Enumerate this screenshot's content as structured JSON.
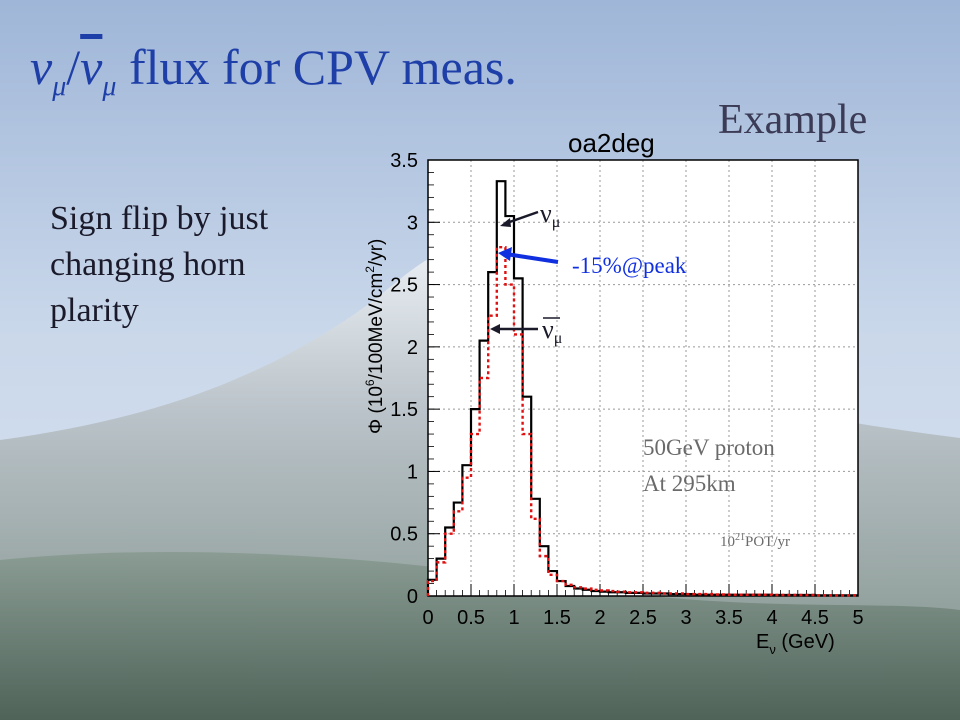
{
  "slide": {
    "title_nu": "ν",
    "title_sub": "μ",
    "title_slash": "/",
    "title_nubar": "ν",
    "title_rest": " flux for CPV meas.",
    "example_label": "Example",
    "side_text": "Sign flip by just changing horn plarity"
  },
  "colors": {
    "title": "#1f3fa8",
    "numu_line": "#000000",
    "numubar_line": "#e01010",
    "blue_arrow": "#1030e0",
    "annotation_blue": "#1030e0",
    "annotation_gray": "#6a6a6a"
  },
  "chart_data": {
    "type": "line",
    "step": true,
    "title": "oa2deg",
    "xlabel_main": "E",
    "xlabel_sub": "ν",
    "xlabel_unit": " (GeV)",
    "ylabel_pre": "Φ (10",
    "ylabel_exp1": "6",
    "ylabel_mid": "/100MeV/cm",
    "ylabel_exp2": "2",
    "ylabel_post": "/yr)",
    "xlim": [
      0,
      5
    ],
    "ylim": [
      0,
      3.5
    ],
    "xticks": [
      "0",
      "0.5",
      "1",
      "1.5",
      "2",
      "2.5",
      "3",
      "3.5",
      "4",
      "4.5",
      "5"
    ],
    "yticks": [
      "0",
      "0.5",
      "1",
      "1.5",
      "2",
      "2.5",
      "3",
      "3.5"
    ],
    "grid": true,
    "bin_width": 0.1,
    "series": [
      {
        "label_text": "νμ",
        "style": "solid",
        "color": "#000000",
        "values": [
          0.13,
          0.3,
          0.55,
          0.75,
          1.05,
          1.5,
          2.05,
          2.6,
          3.33,
          3.05,
          2.55,
          1.6,
          0.78,
          0.4,
          0.2,
          0.12,
          0.08,
          0.06,
          0.05,
          0.04,
          0.035,
          0.03,
          0.03,
          0.025,
          0.025,
          0.02,
          0.02,
          0.02,
          0.015,
          0.015,
          0.015,
          0.01,
          0.01,
          0.01,
          0.01,
          0.01,
          0.01,
          0.01,
          0.01,
          0.01,
          0.008,
          0.008,
          0.008,
          0.008,
          0.008,
          0.005,
          0.005,
          0.005,
          0.005,
          0.005
        ]
      },
      {
        "label_text": "νμ (anti)",
        "style": "dotted",
        "color": "#e01010",
        "values": [
          0.12,
          0.27,
          0.5,
          0.68,
          0.95,
          1.3,
          1.75,
          2.25,
          2.8,
          2.5,
          2.1,
          1.3,
          0.62,
          0.32,
          0.17,
          0.12,
          0.09,
          0.07,
          0.06,
          0.05,
          0.045,
          0.04,
          0.035,
          0.03,
          0.03,
          0.025,
          0.025,
          0.02,
          0.02,
          0.02,
          0.015,
          0.015,
          0.015,
          0.012,
          0.012,
          0.01,
          0.01,
          0.01,
          0.01,
          0.01,
          0.008,
          0.008,
          0.008,
          0.008,
          0.008,
          0.005,
          0.005,
          0.005,
          0.005,
          0.005
        ]
      }
    ],
    "annotations": {
      "numu_label": "ν",
      "numu_sub": "μ",
      "numubar_label": "ν",
      "numubar_sub": "μ",
      "peak_text": "-15%@peak",
      "proton_line1": "50GeV proton",
      "proton_line2": "At 295km",
      "pot_base": "10",
      "pot_exp": "21",
      "pot_rest": "POT/yr"
    }
  }
}
